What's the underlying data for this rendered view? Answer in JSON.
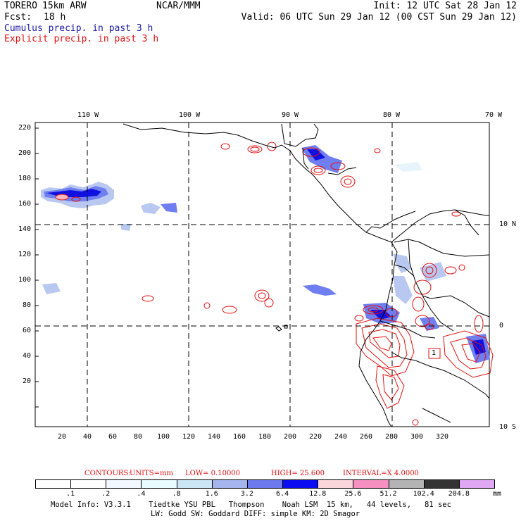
{
  "header": {
    "model": "TORERO",
    "resolution": "15km ARW",
    "center": "NCAR/MMM",
    "init": "Init: 12 UTC Sat 28 Jan 12",
    "fcst_label": "Fcst:",
    "fcst_value": "18 h",
    "valid": "Valid: 06 UTC Sun 29 Jan 12 (00 CST Sun 29 Jan 12)",
    "cumulus": "Cumulus precip. in past 3 h",
    "explicit": "Explicit precip. in past 3 h"
  },
  "map": {
    "lon_labels": [
      "110 W",
      "100 W",
      "90 W",
      "80 W",
      "70 W"
    ],
    "lat_labels": [
      "10 N",
      "0",
      "10 S"
    ],
    "y_ticks": [
      "220",
      "200",
      "180",
      "160",
      "140",
      "120",
      "100",
      "80",
      "60",
      "40",
      "20"
    ],
    "x_ticks": [
      "20",
      "40",
      "60",
      "80",
      "100",
      "120",
      "140",
      "160",
      "180",
      "200",
      "220",
      "240",
      "260",
      "280",
      "300",
      "320"
    ],
    "box_label": "1",
    "colors": {
      "coast": "#000000",
      "cumulus_light": "#b9c8f0",
      "cumulus_mid": "#6f7ef0",
      "cumulus_dark": "#1010e0",
      "explicit": "#e01010",
      "explicit_fill": "#f4b8c0"
    }
  },
  "contours": {
    "title": "CONTOURS:",
    "units": "UNITS=mm",
    "low": "LOW= 0.10000",
    "high": "HIGH= 25.600",
    "interval": "INTERVAL=X 4.0000"
  },
  "colorbar": {
    "labels": [
      ".1",
      ".2",
      ".4",
      ".8",
      "1.6",
      "3.2",
      "6.4",
      "12.8",
      "25.6",
      "51.2",
      "102.4",
      "204.8"
    ],
    "units": "mm",
    "colors": [
      "#ffffff",
      "#ffffff",
      "#f2f8ff",
      "#e8fbff",
      "#cce6f5",
      "#a6b4ee",
      "#6d79ee",
      "#0c0cf0",
      "#f9d6da",
      "#f590c0",
      "#b4b4b4",
      "#333333",
      "#e0a8f4"
    ]
  },
  "footer": {
    "line1": "Model Info: V3.3.1    Tiedtke YSU PBL   Thompson    Noah LSM  15 km,   44 levels,   81 sec",
    "line2": "LW: Godd SW: Goddard DIFF: simple KM: 2D Smagor"
  }
}
